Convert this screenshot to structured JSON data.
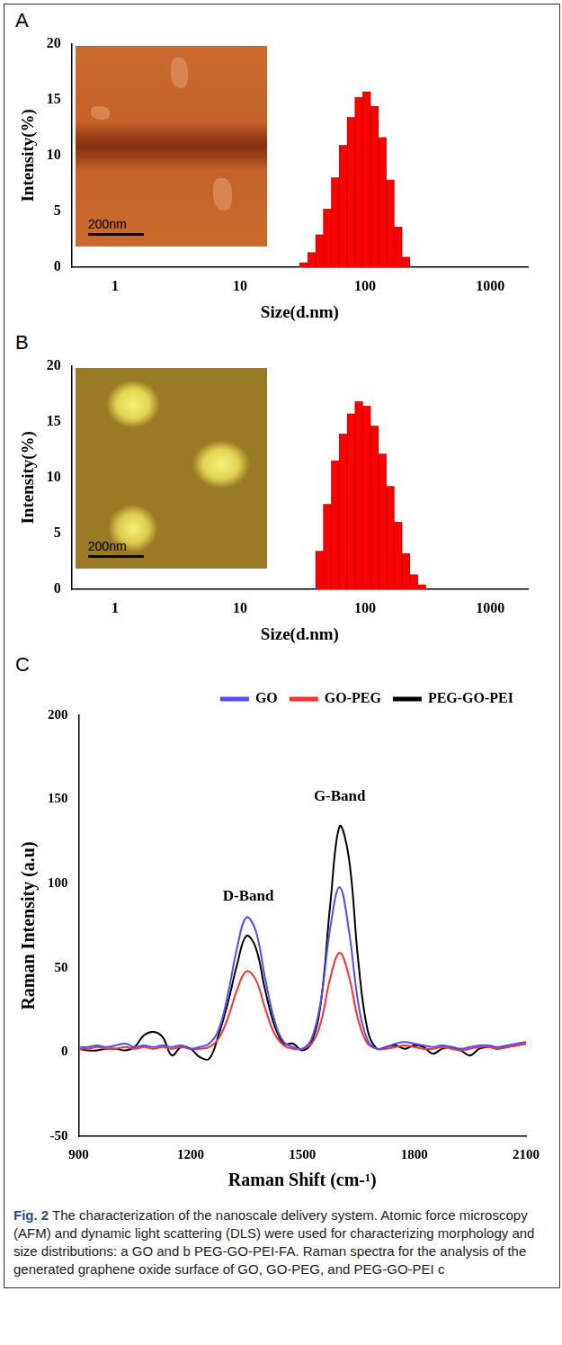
{
  "chart_data": [
    {
      "panel": "A",
      "type": "histogram",
      "x_label": "Size(d.nm)",
      "y_label": "Intensity(%)",
      "bins": [
        30.0,
        34.7,
        40.1,
        46.3,
        53.6,
        61.9,
        71.6,
        82.8,
        95.7,
        110.6,
        127.8,
        147.8,
        170.8,
        197.5,
        228.3
      ],
      "values": [
        0.4,
        1.3,
        2.9,
        5.2,
        8.0,
        10.9,
        13.4,
        15.2,
        15.7,
        14.4,
        11.6,
        7.8,
        3.6,
        0.9
      ],
      "color": "#ff0000",
      "log": "x",
      "xlim": [
        0.45,
        2000
      ],
      "xticks": [
        1,
        10,
        100,
        1000
      ],
      "ylim": [
        0,
        20
      ],
      "yticks": [
        0,
        5,
        10,
        15,
        20
      ],
      "grid": false,
      "scale_bar_label": "200nm"
    },
    {
      "panel": "B",
      "type": "histogram",
      "x_label": "Size(d.nm)",
      "y_label": "Intensity(%)",
      "bins": [
        40.1,
        46.3,
        53.6,
        61.9,
        71.6,
        82.8,
        95.7,
        110.6,
        127.8,
        147.8,
        170.8,
        197.5,
        228.3,
        263.9,
        305.0
      ],
      "values": [
        3.4,
        7.6,
        11.5,
        13.9,
        15.7,
        16.8,
        16.4,
        14.6,
        12.1,
        9.2,
        6.0,
        3.2,
        1.3,
        0.4
      ],
      "color": "#ff0000",
      "log": "x",
      "xlim": [
        0.45,
        2000
      ],
      "xticks": [
        1,
        10,
        100,
        1000
      ],
      "ylim": [
        0,
        20
      ],
      "yticks": [
        0,
        5,
        10,
        15,
        20
      ],
      "grid": false,
      "scale_bar_label": "200nm"
    },
    {
      "panel": "C",
      "type": "line",
      "x_label": "Raman Shift (cm-¹)",
      "y_label": "Raman Intensity (a.u)",
      "x": [
        900,
        925,
        950,
        975,
        1000,
        1025,
        1050,
        1075,
        1100,
        1125,
        1150,
        1175,
        1200,
        1225,
        1250,
        1275,
        1300,
        1325,
        1350,
        1375,
        1400,
        1425,
        1450,
        1475,
        1500,
        1525,
        1550,
        1575,
        1600,
        1625,
        1650,
        1675,
        1700,
        1725,
        1750,
        1775,
        1800,
        1825,
        1850,
        1875,
        1900,
        1925,
        1950,
        1975,
        2000,
        2025,
        2050,
        2075,
        2100
      ],
      "series": [
        {
          "name": "GO",
          "color": "#4f4fff",
          "line_style": "solid",
          "marker": "none",
          "values": [
            3,
            3,
            4,
            3,
            4,
            5,
            3,
            4,
            3,
            4,
            3,
            4,
            2,
            3,
            5,
            13,
            34,
            62,
            80,
            72,
            44,
            19,
            6,
            3,
            2,
            8,
            31,
            74,
            98,
            72,
            29,
            7,
            2,
            3,
            5,
            6,
            5,
            4,
            3,
            4,
            3,
            2,
            3,
            4,
            4,
            3,
            4,
            5,
            6
          ]
        },
        {
          "name": "GO-PEG",
          "color": "#ff3030",
          "line_style": "solid",
          "marker": "none",
          "values": [
            2,
            2,
            3,
            2,
            2,
            3,
            2,
            3,
            2,
            3,
            2,
            3,
            2,
            2,
            3,
            8,
            20,
            37,
            48,
            43,
            26,
            11,
            4,
            2,
            2,
            5,
            18,
            44,
            59,
            45,
            19,
            5,
            2,
            2,
            3,
            4,
            3,
            2,
            2,
            3,
            2,
            1,
            2,
            3,
            3,
            2,
            3,
            4,
            5
          ]
        },
        {
          "name": "PEG-GO-PEI",
          "color": "#000000",
          "line_style": "solid",
          "marker": "none",
          "values": [
            2,
            1,
            1,
            2,
            2,
            1,
            3,
            10,
            12,
            9,
            -2,
            3,
            2,
            -3,
            -4,
            10,
            29,
            52,
            69,
            62,
            37,
            16,
            5,
            5,
            1,
            6,
            30,
            88,
            134,
            115,
            54,
            13,
            2,
            3,
            4,
            2,
            4,
            3,
            -1,
            2,
            3,
            1,
            -2,
            2,
            3,
            2,
            3,
            4,
            5
          ]
        }
      ],
      "xlim": [
        900,
        2100
      ],
      "xticks": [
        900,
        1200,
        1500,
        1800,
        2100
      ],
      "ylim": [
        -50,
        200
      ],
      "yticks": [
        -50,
        0,
        50,
        100,
        150,
        200
      ],
      "grid": false,
      "legend": "top-right",
      "annotations": [
        {
          "text": "D-Band",
          "x": 1355,
          "y": 88
        },
        {
          "text": "G-Band",
          "x": 1600,
          "y": 147
        }
      ]
    }
  ],
  "caption": {
    "label": "Fig. 2",
    "text": "The characterization of the nanoscale delivery system. Atomic force microscopy (AFM) and dynamic light scattering (DLS) were used for characterizing morphology and size distributions: a GO and b PEG-GO-PEI-FA. Raman spectra for the analysis of the generated graphene oxide surface of GO, GO-PEG, and PEG-GO-PEI c"
  }
}
